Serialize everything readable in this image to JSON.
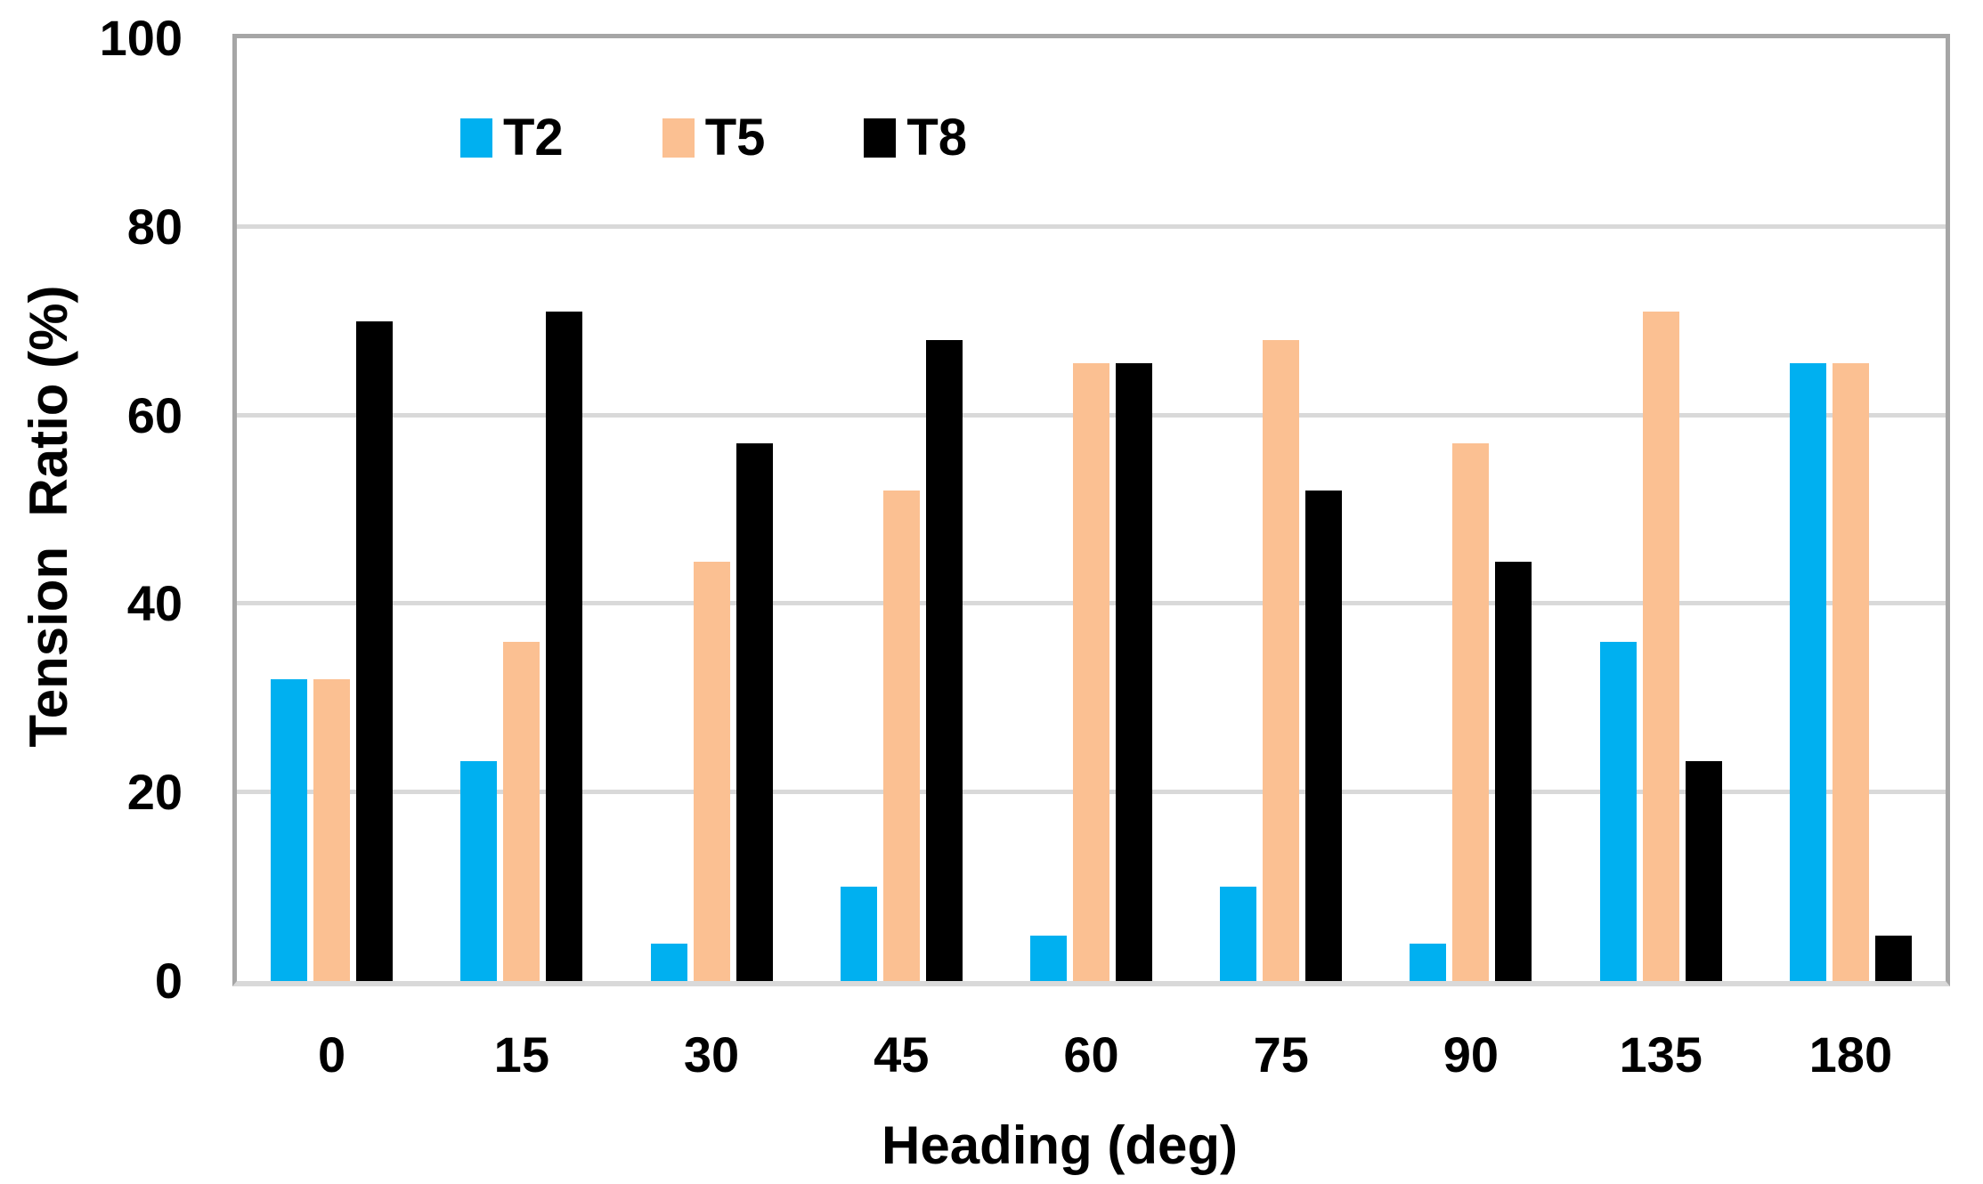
{
  "chart_data": {
    "type": "bar",
    "title": "",
    "xlabel": "Heading (deg)",
    "ylabel": "Tension  Ratio (%)",
    "categories": [
      "0",
      "15",
      "30",
      "45",
      "60",
      "75",
      "90",
      "135",
      "180"
    ],
    "series": [
      {
        "name": "T2",
        "color": "#00B0F0",
        "values": [
          32,
          23.3,
          4,
          10,
          4.8,
          10,
          4,
          36,
          65.5
        ]
      },
      {
        "name": "T5",
        "color": "#FBC092",
        "values": [
          32,
          36,
          44.5,
          52,
          65.5,
          68,
          57,
          71,
          65.5
        ]
      },
      {
        "name": "T8",
        "color": "#000000",
        "values": [
          70,
          71,
          57,
          68,
          65.5,
          52,
          44.5,
          23.3,
          4.8
        ]
      }
    ],
    "ylim": [
      0,
      100
    ],
    "yticks": [
      "0",
      "20",
      "40",
      "60",
      "80",
      "100"
    ],
    "grid": true,
    "legend_position": "inside-top-left",
    "colors": {
      "plot_border": "#A6A6A6",
      "baseline": "#D9D9D9",
      "gridline": "#D9D9D9",
      "text": "#000000",
      "background": "#FFFFFF"
    }
  }
}
